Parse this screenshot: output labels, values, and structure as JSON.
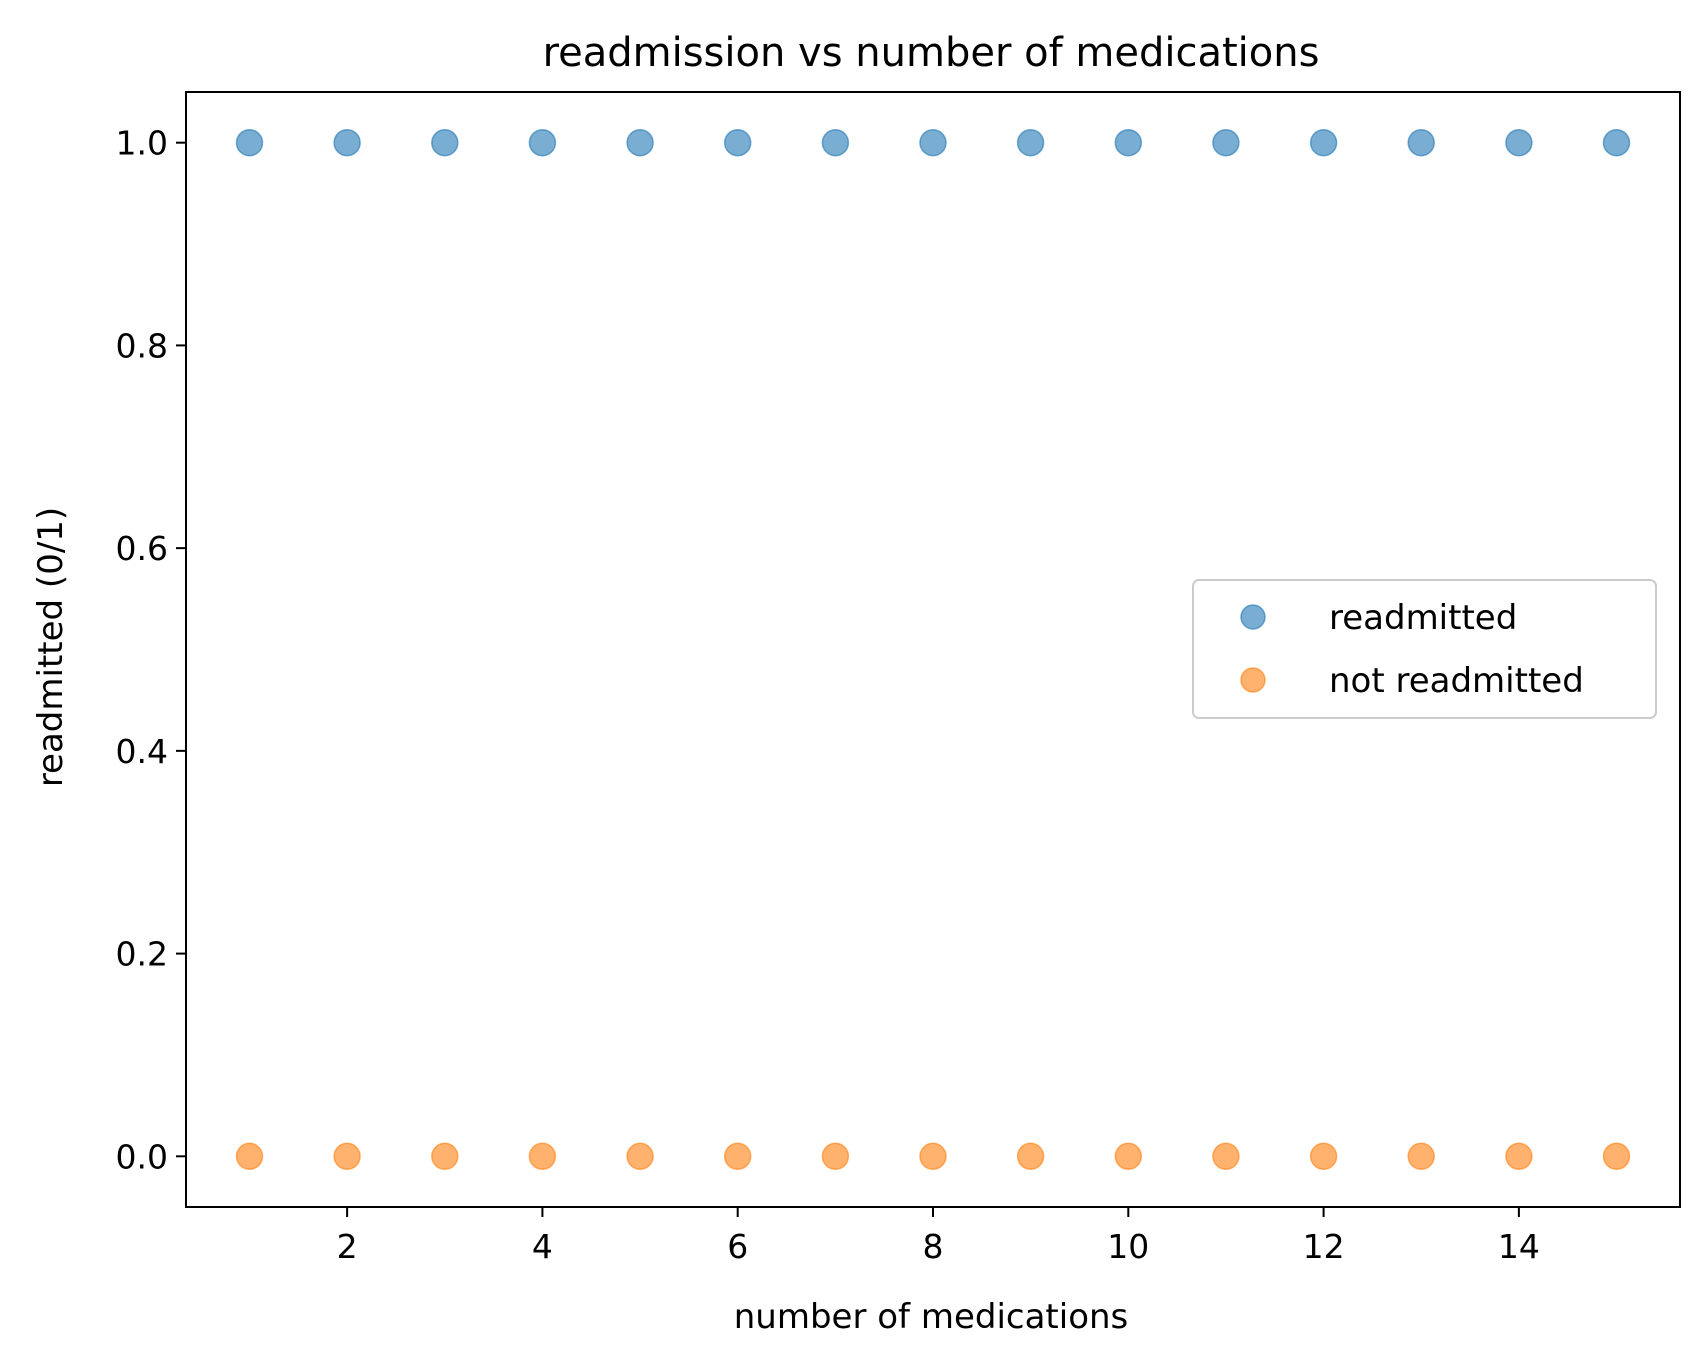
{
  "chart_data": {
    "type": "scatter",
    "title": "readmission vs number of medications",
    "xlabel": "number of medications",
    "ylabel": "readmitted (0/1)",
    "xlim": [
      0.35,
      15.65
    ],
    "ylim": [
      -0.05,
      1.05
    ],
    "xticks": [
      2,
      4,
      6,
      8,
      10,
      12,
      14
    ],
    "xtick_labels": [
      "2",
      "4",
      "6",
      "8",
      "10",
      "12",
      "14"
    ],
    "yticks": [
      0.0,
      0.2,
      0.4,
      0.6,
      0.8,
      1.0
    ],
    "ytick_labels": [
      "0.0",
      "0.2",
      "0.4",
      "0.6",
      "0.8",
      "1.0"
    ],
    "grid": false,
    "legend_position": "center-right",
    "series": [
      {
        "name": "readmitted",
        "color": "#1f77b4",
        "x": [
          1,
          2,
          3,
          4,
          5,
          6,
          7,
          8,
          9,
          10,
          11,
          12,
          13,
          14,
          15
        ],
        "y": [
          1,
          1,
          1,
          1,
          1,
          1,
          1,
          1,
          1,
          1,
          1,
          1,
          1,
          1,
          1
        ]
      },
      {
        "name": "not readmitted",
        "color": "#ff7f0e",
        "x": [
          1,
          2,
          3,
          4,
          5,
          6,
          7,
          8,
          9,
          10,
          11,
          12,
          13,
          14,
          15
        ],
        "y": [
          0,
          0,
          0,
          0,
          0,
          0,
          0,
          0,
          0,
          0,
          0,
          0,
          0,
          0,
          0
        ]
      }
    ]
  }
}
